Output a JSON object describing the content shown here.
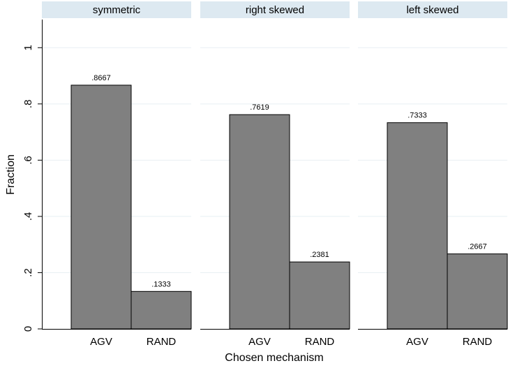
{
  "chart_data": {
    "type": "bar",
    "ylabel": "Fraction",
    "xlabel": "Chosen mechanism",
    "ylim": [
      0,
      1.1
    ],
    "y_ticks": [
      {
        "value": 0,
        "label": "0"
      },
      {
        "value": 0.2,
        "label": ".2"
      },
      {
        "value": 0.4,
        "label": ".4"
      },
      {
        "value": 0.6,
        "label": ".6"
      },
      {
        "value": 0.8,
        "label": ".8"
      },
      {
        "value": 1.0,
        "label": "1"
      }
    ],
    "grid": true,
    "panels": [
      {
        "title": "symmetric",
        "categories": [
          "AGV",
          "RAND"
        ],
        "values": [
          0.8667,
          0.1333
        ],
        "value_labels": [
          ".8667",
          ".1333"
        ]
      },
      {
        "title": "right skewed",
        "categories": [
          "AGV",
          "RAND"
        ],
        "values": [
          0.7619,
          0.2381
        ],
        "value_labels": [
          ".7619",
          ".2381"
        ]
      },
      {
        "title": "left skewed",
        "categories": [
          "AGV",
          "RAND"
        ],
        "values": [
          0.7333,
          0.2667
        ],
        "value_labels": [
          ".7333",
          ".2667"
        ]
      }
    ],
    "colors": {
      "bar_fill": "#808080",
      "bar_stroke": "#000000",
      "strip_fill": "#dde9f1",
      "grid": "#e8eff3"
    }
  }
}
